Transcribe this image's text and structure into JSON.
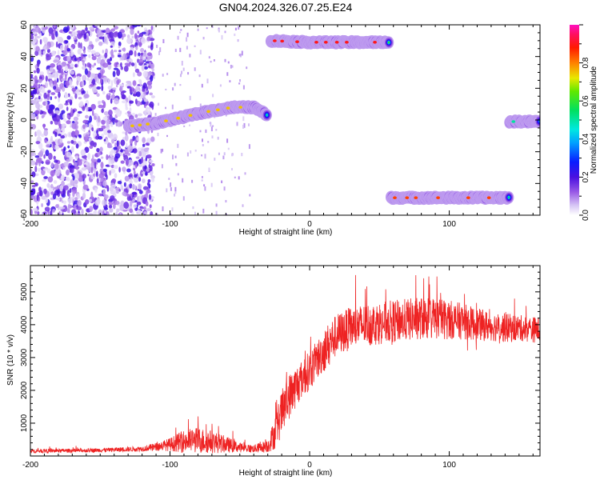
{
  "title": "GN04.2024.326.07.25.E24",
  "colors": {
    "snr_line": "#ee2222",
    "axis": "#000000"
  },
  "chart_data": [
    {
      "type": "heatmap",
      "xlabel": "Height of straight line (km)",
      "ylabel": "Frequency (Hz)",
      "xlim": [
        -200,
        165
      ],
      "ylim": [
        -60,
        60
      ],
      "x_ticks": [
        "-200",
        "-100",
        "0",
        "100"
      ],
      "y_ticks": [
        "60",
        "40",
        "20",
        "0",
        "-20",
        "-40",
        "-60"
      ],
      "colorbar": {
        "label": "Normalized spectral amplitude",
        "range": [
          0,
          1
        ],
        "ticks": [
          "0.0",
          "0.2",
          "0.4",
          "0.6",
          "0.8"
        ],
        "colormap": "rainbow (white-purple-blue-cyan-green-yellow-red-magenta)"
      },
      "features": [
        {
          "kind": "noise_region",
          "x_range": [
            -200,
            -112
          ],
          "y_range": [
            -60,
            60
          ]
        },
        {
          "kind": "track",
          "points": [
            [
              -130,
              -4
            ],
            [
              -110,
              -2
            ],
            [
              -90,
              2
            ],
            [
              -75,
              5
            ],
            [
              -55,
              8
            ],
            [
              -40,
              8
            ],
            [
              -30,
              3
            ]
          ],
          "peak_amplitude": 0.75
        },
        {
          "kind": "track",
          "points": [
            [
              -28,
              50
            ],
            [
              0,
              49
            ],
            [
              30,
              49
            ],
            [
              57,
              49
            ]
          ],
          "peak_amplitude": 0.9
        },
        {
          "kind": "track",
          "points": [
            [
              58,
              -49
            ],
            [
              90,
              -49
            ],
            [
              120,
              -49
            ],
            [
              143,
              -49
            ]
          ],
          "peak_amplitude": 0.85
        },
        {
          "kind": "track",
          "points": [
            [
              143,
              -1
            ],
            [
              165,
              -1
            ]
          ],
          "peak_amplitude": 0.5
        }
      ]
    },
    {
      "type": "line",
      "xlabel": "Height of straight line (km)",
      "ylabel": "SNR (10 * v/v)",
      "xlim": [
        -200,
        165
      ],
      "ylim": [
        0,
        5800
      ],
      "x_ticks": [
        "-200",
        "-100",
        "0",
        "100"
      ],
      "y_ticks": [
        "1000",
        "2000",
        "3000",
        "4000",
        "5000"
      ],
      "series": [
        {
          "x": [
            -200,
            -180,
            -160,
            -140,
            -120,
            -110,
            -100,
            -90,
            -80,
            -70,
            -60,
            -50,
            -40,
            -30,
            -25,
            -20,
            -15,
            -10,
            -5,
            0,
            5,
            10,
            15,
            20,
            30,
            40,
            50,
            60,
            70,
            80,
            90,
            100,
            110,
            120,
            130,
            140,
            150,
            160,
            165
          ],
          "y": [
            150,
            160,
            170,
            190,
            220,
            280,
            350,
            450,
            480,
            430,
            350,
            260,
            220,
            300,
            700,
            1300,
            1800,
            2100,
            2400,
            2600,
            2900,
            3200,
            3500,
            3700,
            3900,
            4000,
            4050,
            4100,
            4150,
            4200,
            4200,
            4150,
            4100,
            4000,
            3950,
            3900,
            3900,
            3850,
            3850
          ],
          "noise_amplitude": [
            60,
            60,
            60,
            70,
            80,
            120,
            200,
            350,
            400,
            350,
            250,
            150,
            120,
            200,
            500,
            700,
            700,
            650,
            600,
            600,
            600,
            650,
            650,
            650,
            650,
            650,
            650,
            650,
            650,
            650,
            650,
            600,
            550,
            500,
            450,
            450,
            400,
            400,
            400
          ]
        }
      ]
    }
  ]
}
